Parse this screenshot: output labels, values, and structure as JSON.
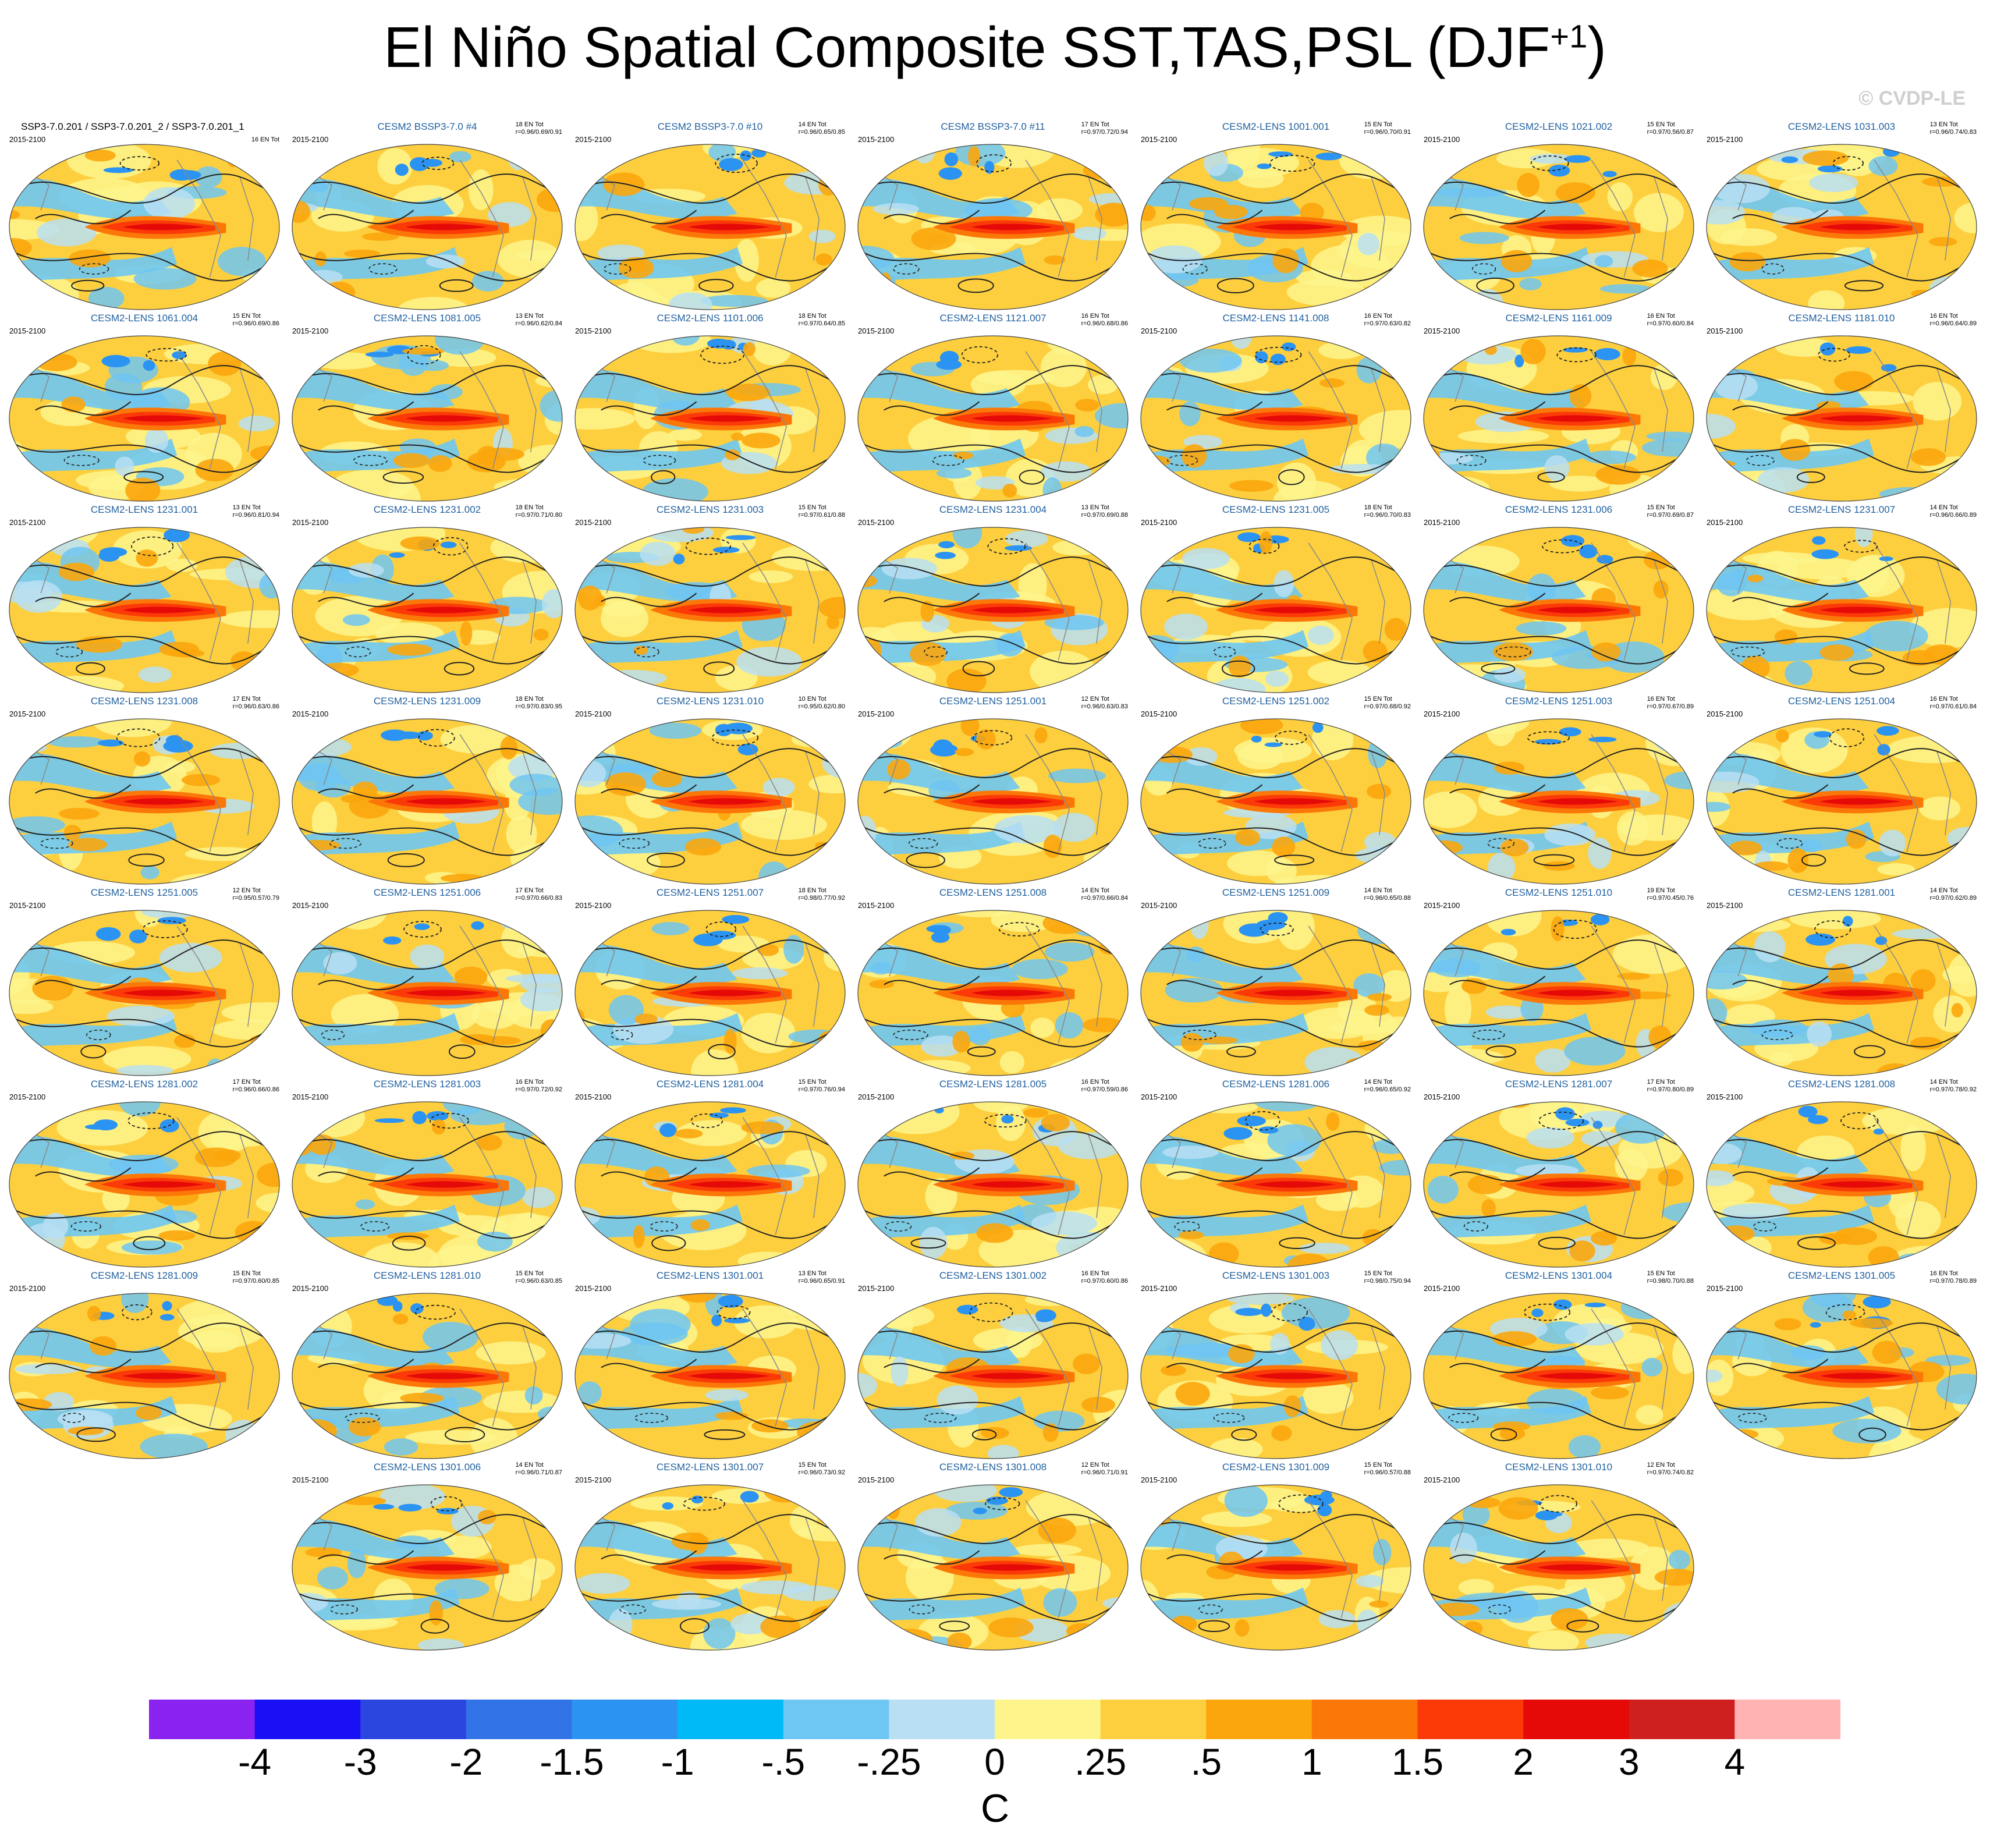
{
  "title": {
    "main": "El Niño Spatial Composite SST,TAS,PSL (DJF",
    "sup": "+1",
    "close": ")"
  },
  "watermark": "© CVDP-LE",
  "panels": [
    {
      "title": "SSP3-7.0.201 / SSP3-7.0.201_2 / SSP3-7.0.201_1",
      "period": "2015-2100",
      "count": "16 EN Tot",
      "stats": "",
      "obs": true
    },
    {
      "title": "CESM2 BSSP3-7.0 #4",
      "period": "2015-2100",
      "count": "18 EN Tot",
      "stats": "r=0.96/0.69/0.91"
    },
    {
      "title": "CESM2 BSSP3-7.0 #10",
      "period": "2015-2100",
      "count": "14 EN Tot",
      "stats": "r=0.96/0.65/0.85"
    },
    {
      "title": "CESM2 BSSP3-7.0 #11",
      "period": "2015-2100",
      "count": "17 EN Tot",
      "stats": "r=0.97/0.72/0.94"
    },
    {
      "title": "CESM2-LENS 1001.001",
      "period": "2015-2100",
      "count": "15 EN Tot",
      "stats": "r=0.96/0.70/0.91"
    },
    {
      "title": "CESM2-LENS 1021.002",
      "period": "2015-2100",
      "count": "15 EN Tot",
      "stats": "r=0.97/0.56/0.87"
    },
    {
      "title": "CESM2-LENS 1031.003",
      "period": "2015-2100",
      "count": "13 EN Tot",
      "stats": "r=0.96/0.74/0.83"
    },
    {
      "title": "CESM2-LENS 1061.004",
      "period": "2015-2100",
      "count": "15 EN Tot",
      "stats": "r=0.96/0.69/0.86"
    },
    {
      "title": "CESM2-LENS 1081.005",
      "period": "2015-2100",
      "count": "13 EN Tot",
      "stats": "r=0.96/0.62/0.84"
    },
    {
      "title": "CESM2-LENS 1101.006",
      "period": "2015-2100",
      "count": "18 EN Tot",
      "stats": "r=0.97/0.64/0.85"
    },
    {
      "title": "CESM2-LENS 1121.007",
      "period": "2015-2100",
      "count": "16 EN Tot",
      "stats": "r=0.96/0.68/0.86"
    },
    {
      "title": "CESM2-LENS 1141.008",
      "period": "2015-2100",
      "count": "16 EN Tot",
      "stats": "r=0.97/0.63/0.82"
    },
    {
      "title": "CESM2-LENS 1161.009",
      "period": "2015-2100",
      "count": "16 EN Tot",
      "stats": "r=0.97/0.60/0.84"
    },
    {
      "title": "CESM2-LENS 1181.010",
      "period": "2015-2100",
      "count": "16 EN Tot",
      "stats": "r=0.96/0.64/0.89"
    },
    {
      "title": "CESM2-LENS 1231.001",
      "period": "2015-2100",
      "count": "13 EN Tot",
      "stats": "r=0.96/0.81/0.94"
    },
    {
      "title": "CESM2-LENS 1231.002",
      "period": "2015-2100",
      "count": "18 EN Tot",
      "stats": "r=0.97/0.71/0.80"
    },
    {
      "title": "CESM2-LENS 1231.003",
      "period": "2015-2100",
      "count": "15 EN Tot",
      "stats": "r=0.97/0.61/0.88"
    },
    {
      "title": "CESM2-LENS 1231.004",
      "period": "2015-2100",
      "count": "13 EN Tot",
      "stats": "r=0.97/0.69/0.88"
    },
    {
      "title": "CESM2-LENS 1231.005",
      "period": "2015-2100",
      "count": "18 EN Tot",
      "stats": "r=0.96/0.70/0.83"
    },
    {
      "title": "CESM2-LENS 1231.006",
      "period": "2015-2100",
      "count": "15 EN Tot",
      "stats": "r=0.97/0.69/0.87"
    },
    {
      "title": "CESM2-LENS 1231.007",
      "period": "2015-2100",
      "count": "14 EN Tot",
      "stats": "r=0.96/0.66/0.89"
    },
    {
      "title": "CESM2-LENS 1231.008",
      "period": "2015-2100",
      "count": "17 EN Tot",
      "stats": "r=0.96/0.63/0.86"
    },
    {
      "title": "CESM2-LENS 1231.009",
      "period": "2015-2100",
      "count": "18 EN Tot",
      "stats": "r=0.97/0.83/0.95"
    },
    {
      "title": "CESM2-LENS 1231.010",
      "period": "2015-2100",
      "count": "10 EN Tot",
      "stats": "r=0.95/0.62/0.80"
    },
    {
      "title": "CESM2-LENS 1251.001",
      "period": "2015-2100",
      "count": "12 EN Tot",
      "stats": "r=0.96/0.63/0.83"
    },
    {
      "title": "CESM2-LENS 1251.002",
      "period": "2015-2100",
      "count": "15 EN Tot",
      "stats": "r=0.97/0.68/0.92"
    },
    {
      "title": "CESM2-LENS 1251.003",
      "period": "2015-2100",
      "count": "16 EN Tot",
      "stats": "r=0.97/0.67/0.89"
    },
    {
      "title": "CESM2-LENS 1251.004",
      "period": "2015-2100",
      "count": "16 EN Tot",
      "stats": "r=0.97/0.61/0.84"
    },
    {
      "title": "CESM2-LENS 1251.005",
      "period": "2015-2100",
      "count": "12 EN Tot",
      "stats": "r=0.95/0.57/0.79"
    },
    {
      "title": "CESM2-LENS 1251.006",
      "period": "2015-2100",
      "count": "17 EN Tot",
      "stats": "r=0.97/0.66/0.83"
    },
    {
      "title": "CESM2-LENS 1251.007",
      "period": "2015-2100",
      "count": "18 EN Tot",
      "stats": "r=0.98/0.77/0.92"
    },
    {
      "title": "CESM2-LENS 1251.008",
      "period": "2015-2100",
      "count": "14 EN Tot",
      "stats": "r=0.97/0.66/0.84"
    },
    {
      "title": "CESM2-LENS 1251.009",
      "period": "2015-2100",
      "count": "14 EN Tot",
      "stats": "r=0.96/0.65/0.88"
    },
    {
      "title": "CESM2-LENS 1251.010",
      "period": "2015-2100",
      "count": "19 EN Tot",
      "stats": "r=0.97/0.45/0.76"
    },
    {
      "title": "CESM2-LENS 1281.001",
      "period": "2015-2100",
      "count": "14 EN Tot",
      "stats": "r=0.97/0.62/0.89"
    },
    {
      "title": "CESM2-LENS 1281.002",
      "period": "2015-2100",
      "count": "17 EN Tot",
      "stats": "r=0.96/0.66/0.86"
    },
    {
      "title": "CESM2-LENS 1281.003",
      "period": "2015-2100",
      "count": "16 EN Tot",
      "stats": "r=0.97/0.72/0.92"
    },
    {
      "title": "CESM2-LENS 1281.004",
      "period": "2015-2100",
      "count": "15 EN Tot",
      "stats": "r=0.97/0.76/0.94"
    },
    {
      "title": "CESM2-LENS 1281.005",
      "period": "2015-2100",
      "count": "16 EN Tot",
      "stats": "r=0.97/0.59/0.86"
    },
    {
      "title": "CESM2-LENS 1281.006",
      "period": "2015-2100",
      "count": "14 EN Tot",
      "stats": "r=0.96/0.65/0.92"
    },
    {
      "title": "CESM2-LENS 1281.007",
      "period": "2015-2100",
      "count": "17 EN Tot",
      "stats": "r=0.97/0.80/0.89"
    },
    {
      "title": "CESM2-LENS 1281.008",
      "period": "2015-2100",
      "count": "14 EN Tot",
      "stats": "r=0.97/0.78/0.92"
    },
    {
      "title": "CESM2-LENS 1281.009",
      "period": "2015-2100",
      "count": "15 EN Tot",
      "stats": "r=0.97/0.60/0.85"
    },
    {
      "title": "CESM2-LENS 1281.010",
      "period": "2015-2100",
      "count": "15 EN Tot",
      "stats": "r=0.96/0.63/0.85"
    },
    {
      "title": "CESM2-LENS 1301.001",
      "period": "2015-2100",
      "count": "13 EN Tot",
      "stats": "r=0.96/0.65/0.91"
    },
    {
      "title": "CESM2-LENS 1301.002",
      "period": "2015-2100",
      "count": "16 EN Tot",
      "stats": "r=0.97/0.60/0.86"
    },
    {
      "title": "CESM2-LENS 1301.003",
      "period": "2015-2100",
      "count": "15 EN Tot",
      "stats": "r=0.98/0.75/0.94"
    },
    {
      "title": "CESM2-LENS 1301.004",
      "period": "2015-2100",
      "count": "15 EN Tot",
      "stats": "r=0.98/0.70/0.88"
    },
    {
      "title": "CESM2-LENS 1301.005",
      "period": "2015-2100",
      "count": "16 EN Tot",
      "stats": "r=0.97/0.78/0.89"
    },
    {
      "title": "CESM2-LENS 1301.006",
      "period": "2015-2100",
      "count": "14 EN Tot",
      "stats": "r=0.96/0.71/0.87"
    },
    {
      "title": "CESM2-LENS 1301.007",
      "period": "2015-2100",
      "count": "15 EN Tot",
      "stats": "r=0.96/0.73/0.92"
    },
    {
      "title": "CESM2-LENS 1301.008",
      "period": "2015-2100",
      "count": "12 EN Tot",
      "stats": "r=0.96/0.71/0.91"
    },
    {
      "title": "CESM2-LENS 1301.009",
      "period": "2015-2100",
      "count": "15 EN Tot",
      "stats": "r=0.96/0.57/0.88"
    },
    {
      "title": "CESM2-LENS 1301.010",
      "period": "2015-2100",
      "count": "12 EN Tot",
      "stats": "r=0.97/0.74/0.82"
    }
  ],
  "colorbar": {
    "unit": "C",
    "tick_labels": [
      "-4",
      "-3",
      "-2",
      "-1.5",
      "-1",
      "-.5",
      "-.25",
      "0",
      ".25",
      ".5",
      "1",
      "1.5",
      "2",
      "3",
      "4"
    ],
    "colors": [
      "#8a22f0",
      "#1a10f5",
      "#2a46de",
      "#3273e8",
      "#2b93f2",
      "#00b9f7",
      "#6ec6f2",
      "#b8dff3",
      "#fdf58c",
      "#fdcf3e",
      "#fba60c",
      "#fb7808",
      "#fb3a08",
      "#e50a08",
      "#cf2020",
      "#ffb3b3"
    ]
  },
  "chart_data": {
    "type": "heatmap",
    "title": "El Niño Spatial Composite SST,TAS,PSL (DJF+1)",
    "description_fields": [
      "SST",
      "TAS",
      "PSL"
    ],
    "variable_units": "C",
    "colorbar_levels": [
      -4,
      -3,
      -2,
      -1.5,
      -1,
      -0.5,
      -0.25,
      0,
      0.25,
      0.5,
      1,
      1.5,
      2,
      3,
      4
    ],
    "panel_count": 54,
    "period": "2015-2100"
  }
}
